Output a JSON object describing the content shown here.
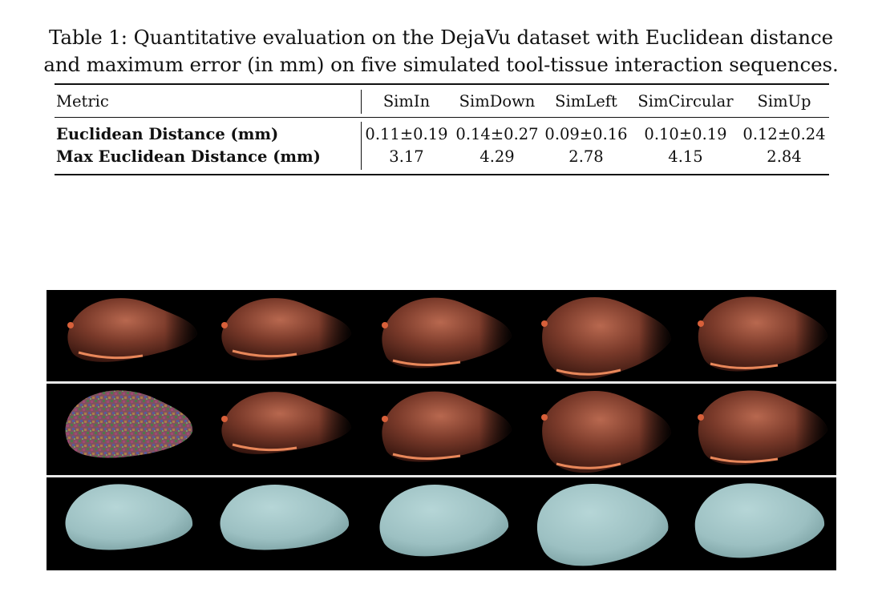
{
  "caption": {
    "line1": "Table 1: Quantitative evaluation on the DejaVu dataset with Euclidean distance",
    "line2": "and maximum error (in mm) on five simulated tool-tissue interaction sequences."
  },
  "table": {
    "metric_header": "Metric",
    "columns": [
      "SimIn",
      "SimDown",
      "SimLeft",
      "SimCircular",
      "SimUp"
    ],
    "rows": [
      {
        "label": "Euclidean Distance (mm)",
        "values": [
          "0.11±0.19",
          "0.14±0.27",
          "0.09±0.16",
          "0.10±0.19",
          "0.12±0.24"
        ]
      },
      {
        "label": "Max Euclidean Distance (mm)",
        "values": [
          "3.17",
          "4.29",
          "2.78",
          "4.15",
          "2.84"
        ]
      }
    ]
  },
  "figure": {
    "rows": [
      "rendered-liver",
      "reconstruction-with-color-features",
      "mesh-geometry"
    ],
    "colors": {
      "liver": "#7a3a2a",
      "liver_highlight": "#e8875a",
      "mesh": "#9cc0c2",
      "background": "#000000",
      "separator": "#e8e8e8"
    }
  }
}
